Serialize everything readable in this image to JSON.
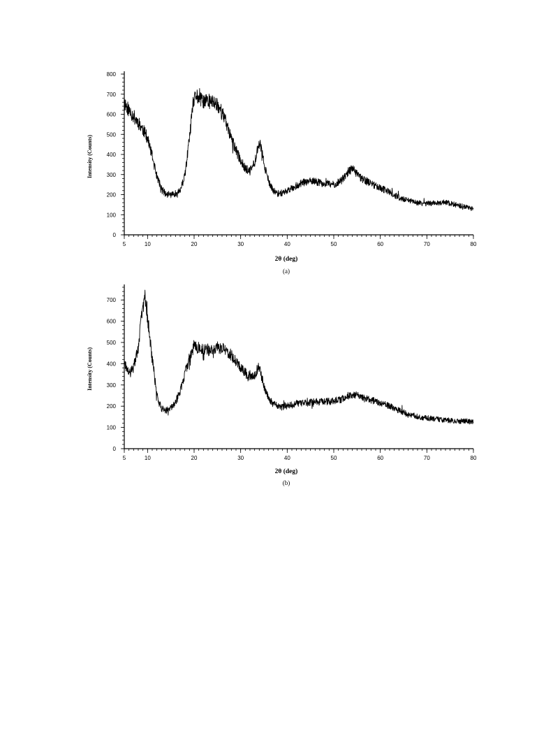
{
  "chart_data": [
    {
      "type": "line",
      "panel_label": "(a)",
      "xlabel": "2θ (deg)",
      "ylabel": "Intensity (Counts)",
      "xlim": [
        5,
        80
      ],
      "ylim": [
        0,
        800
      ],
      "xticks": [
        5,
        10,
        20,
        30,
        40,
        50,
        60,
        70,
        80
      ],
      "yticks": [
        0,
        100,
        200,
        300,
        400,
        500,
        600,
        700,
        800
      ],
      "grid": false,
      "series": [
        {
          "x": [
            5,
            6,
            7,
            8,
            9,
            10,
            11,
            12,
            13,
            14,
            15,
            16,
            17,
            18,
            19,
            19.8,
            20.5,
            21,
            22,
            23,
            24,
            25,
            26,
            27,
            28,
            29,
            30,
            31,
            32,
            33,
            33.7,
            34.2,
            35,
            36,
            37,
            38,
            39,
            40,
            42,
            44,
            46,
            48,
            50,
            52,
            53,
            54,
            55,
            56,
            58,
            60,
            62,
            64,
            66,
            68,
            70,
            72,
            74,
            76,
            78,
            80
          ],
          "y": [
            660,
            620,
            590,
            560,
            525,
            480,
            390,
            290,
            230,
            200,
            200,
            205,
            220,
            290,
            480,
            650,
            700,
            675,
            665,
            665,
            660,
            650,
            610,
            550,
            480,
            420,
            370,
            330,
            315,
            360,
            440,
            450,
            360,
            260,
            220,
            205,
            210,
            220,
            245,
            265,
            265,
            255,
            250,
            275,
            310,
            330,
            300,
            280,
            255,
            235,
            210,
            185,
            170,
            160,
            155,
            160,
            160,
            150,
            140,
            130
          ]
        }
      ]
    },
    {
      "type": "line",
      "panel_label": "(b)",
      "xlabel": "2θ (deg)",
      "ylabel": "Intensity (Counts)",
      "xlim": [
        5,
        80
      ],
      "ylim": [
        0,
        760
      ],
      "xticks": [
        5,
        10,
        20,
        30,
        40,
        50,
        60,
        70,
        80
      ],
      "yticks": [
        0,
        100,
        200,
        300,
        400,
        500,
        600,
        700
      ],
      "grid": false,
      "series": [
        {
          "x": [
            5,
            6,
            7,
            8,
            8.8,
            9.4,
            10,
            11,
            12,
            13,
            14,
            15,
            16,
            17,
            18,
            19,
            20,
            21,
            22,
            23,
            24,
            25,
            26,
            27,
            28,
            29,
            30,
            31,
            32,
            33,
            33.8,
            34.3,
            35,
            36,
            37,
            38,
            39,
            40,
            42,
            44,
            46,
            48,
            50,
            52,
            53.5,
            55,
            56,
            58,
            60,
            62,
            64,
            66,
            68,
            70,
            72,
            74,
            76,
            78,
            80
          ],
          "y": [
            400,
            350,
            380,
            480,
            640,
            720,
            620,
            420,
            250,
            190,
            180,
            190,
            220,
            270,
            350,
            430,
            485,
            475,
            465,
            465,
            470,
            475,
            470,
            460,
            440,
            410,
            385,
            360,
            340,
            345,
            385,
            360,
            290,
            240,
            210,
            200,
            195,
            200,
            210,
            215,
            220,
            220,
            225,
            235,
            255,
            250,
            240,
            230,
            215,
            200,
            180,
            160,
            150,
            145,
            140,
            135,
            130,
            130,
            125
          ]
        }
      ]
    }
  ]
}
